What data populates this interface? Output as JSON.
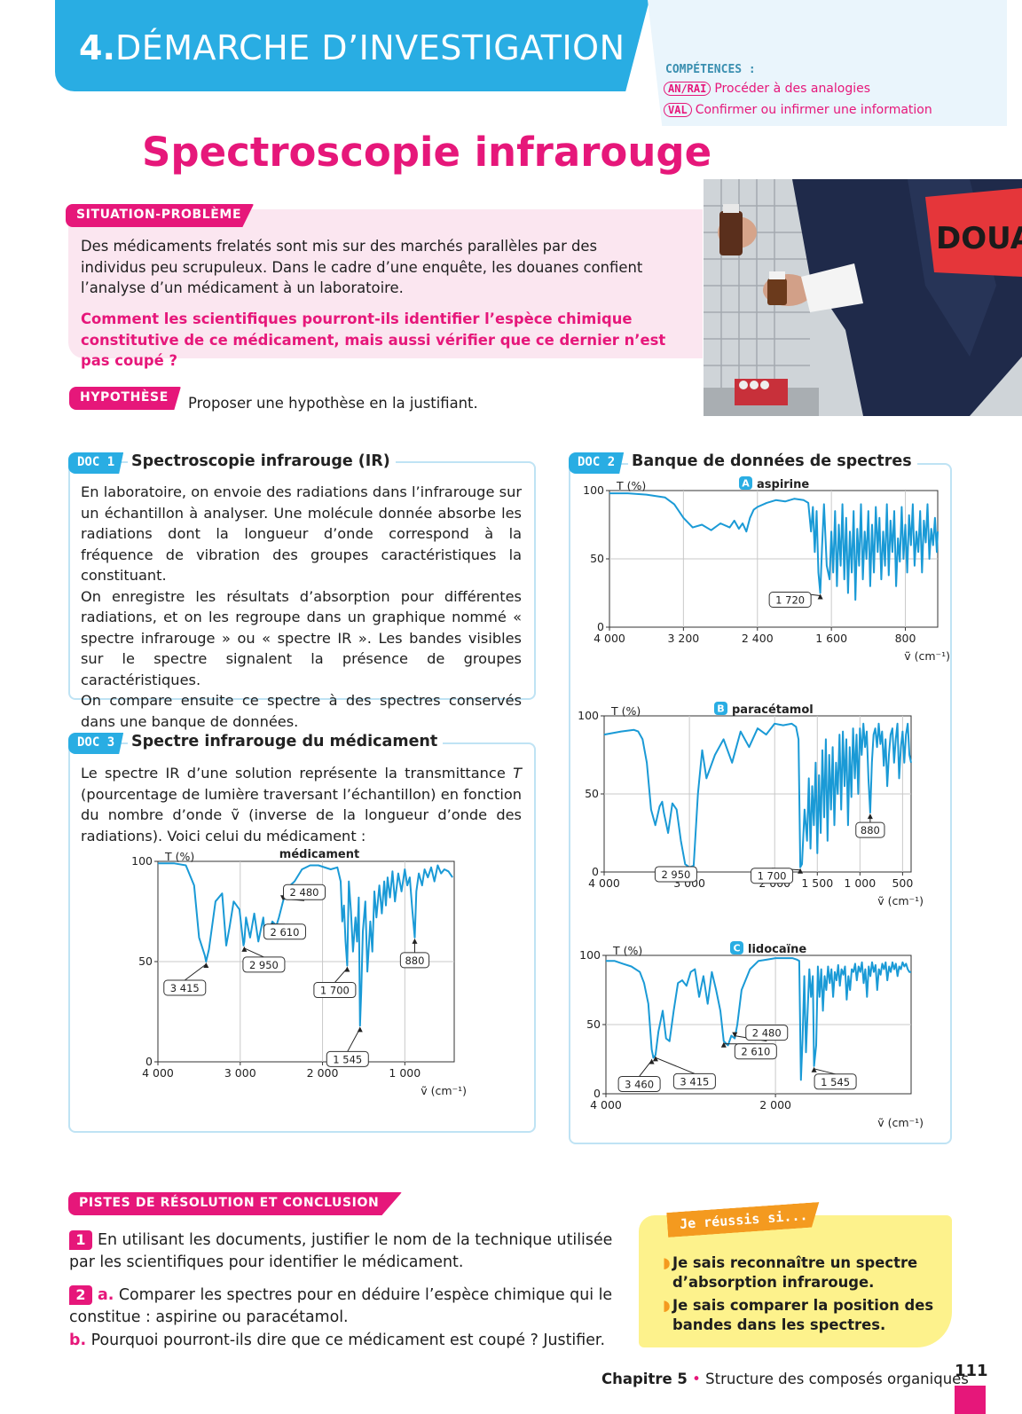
{
  "header": {
    "number": "4.",
    "title": "DÉMARCHE D’INVESTIGATION",
    "competences_title": "COMPÉTENCES :",
    "competences": [
      {
        "tag": "AN/RAI",
        "label": "Procéder à des analogies"
      },
      {
        "tag": "VAL",
        "label": "Confirmer ou infirmer une information"
      }
    ]
  },
  "page_title": "Spectroscopie infrarouge",
  "situation": {
    "label": "SITUATION-PROBLÈME",
    "text": "Des médicaments frelatés sont mis sur des marchés parallèles par des individus peu scrupuleux. Dans le cadre d’une enquête, les douanes confient l’analyse d’un médicament à un laboratoire.",
    "question": "Comment les scientifiques pourront-ils identifier l’espèce chimique constitutive de ce médicament, mais aussi vérifier que ce dernier n’est pas coupé ?"
  },
  "photo": {
    "armband_text": "DOUAN"
  },
  "hypothese": {
    "label": "HYPOTHÈSE",
    "text": "Proposer une hypothèse en la justifiant."
  },
  "doc1": {
    "tag": "DOC 1",
    "title": "Spectroscopie infrarouge (IR)",
    "paragraphs": [
      "En laboratoire, on envoie des radiations dans l’infrarouge sur un échantillon à analyser. Une molécule donnée absorbe les radiations dont la longueur d’onde correspond à la fréquence de vibration des groupes caractéristiques la constituant.",
      "On enregistre les résultats d’absorption pour différentes radiations, et on les regroupe dans un graphique nommé « spectre infrarouge » ou « spectre IR ». Les bandes visibles sur le spectre signalent la présence de groupes caractéristiques.",
      "On compare ensuite ce spectre à des spectres conservés dans une banque de données."
    ]
  },
  "doc2": {
    "tag": "DOC 2",
    "title": "Banque de données de spectres"
  },
  "doc3": {
    "tag": "DOC 3",
    "title": "Spectre infrarouge du médicament",
    "text_parts": [
      "Le spectre IR d’une solution représente la transmittance ",
      "T",
      " (pourcentage de lumière traversant l’échantillon) en fonction du nombre d’onde ṽ (inverse de la longueur d’onde des radiations). Voici celui du médicament :"
    ]
  },
  "chart_data": [
    {
      "id": "medicament",
      "type": "line",
      "title": "médicament",
      "ylabel": "T (%)",
      "xlabel": "ṽ (cm⁻¹)",
      "xlim": [
        4000,
        400
      ],
      "ylim": [
        0,
        100
      ],
      "x_ticks": [
        "4 000",
        "3 000",
        "2 000",
        "1 000"
      ],
      "x_tick_values": [
        4000,
        3000,
        2000,
        1000
      ],
      "y_ticks": [
        "0",
        "50",
        "100"
      ],
      "color": "#1a9ad6",
      "x": [
        4000,
        3800,
        3660,
        3560,
        3500,
        3430,
        3415,
        3380,
        3300,
        3220,
        3170,
        3130,
        3080,
        3010,
        2960,
        2950,
        2930,
        2880,
        2830,
        2780,
        2720,
        2700,
        2650,
        2610,
        2560,
        2530,
        2480,
        2420,
        2340,
        2250,
        2150,
        2050,
        1900,
        1820,
        1780,
        1760,
        1740,
        1720,
        1700,
        1680,
        1655,
        1630,
        1600,
        1580,
        1560,
        1545,
        1530,
        1510,
        1480,
        1455,
        1420,
        1395,
        1370,
        1345,
        1310,
        1280,
        1250,
        1230,
        1210,
        1180,
        1150,
        1120,
        1080,
        1040,
        1000,
        970,
        940,
        910,
        880,
        860,
        830,
        790,
        760,
        720,
        680,
        640,
        600,
        560,
        520,
        470,
        420
      ],
      "y": [
        99,
        99,
        98,
        88,
        62,
        53,
        50,
        56,
        80,
        84,
        58,
        67,
        80,
        76,
        58,
        60,
        72,
        62,
        74,
        60,
        72,
        62,
        65,
        70,
        68,
        72,
        80,
        87,
        90,
        96,
        98,
        98,
        96,
        97,
        90,
        70,
        78,
        60,
        48,
        90,
        75,
        55,
        72,
        60,
        82,
        18,
        35,
        65,
        80,
        45,
        70,
        55,
        85,
        72,
        88,
        74,
        90,
        78,
        92,
        82,
        95,
        80,
        94,
        85,
        96,
        88,
        92,
        76,
        62,
        85,
        94,
        88,
        96,
        92,
        97,
        90,
        98,
        94,
        96,
        95,
        92
      ],
      "annotations": [
        {
          "label": "3 415",
          "x": 3415,
          "y": 50
        },
        {
          "label": "2 950",
          "x": 2950,
          "y": 58
        },
        {
          "label": "2 610",
          "x": 2610,
          "y": 70
        },
        {
          "label": "2 480",
          "x": 2480,
          "y": 80
        },
        {
          "label": "1 700",
          "x": 1700,
          "y": 48
        },
        {
          "label": "1 545",
          "x": 1545,
          "y": 18
        },
        {
          "label": "880",
          "x": 880,
          "y": 62
        }
      ]
    },
    {
      "id": "aspirine",
      "badge": "A",
      "type": "line",
      "title": "aspirine",
      "ylabel": "T (%)",
      "xlabel": "ṽ (cm⁻¹)",
      "xlim": [
        4000,
        450
      ],
      "ylim": [
        0,
        100
      ],
      "x_ticks": [
        "4 000",
        "3 200",
        "2 400",
        "1 600",
        "800"
      ],
      "x_tick_values": [
        4000,
        3200,
        2400,
        1600,
        800
      ],
      "y_ticks": [
        "0",
        "50",
        "100"
      ],
      "color": "#1a9ad6",
      "x": [
        4000,
        3800,
        3600,
        3400,
        3300,
        3200,
        3100,
        3000,
        2900,
        2800,
        2700,
        2650,
        2600,
        2560,
        2520,
        2480,
        2440,
        2400,
        2300,
        2200,
        2100,
        2000,
        1900,
        1850,
        1820,
        1800,
        1780,
        1760,
        1740,
        1720,
        1700,
        1680,
        1650,
        1620,
        1600,
        1580,
        1560,
        1540,
        1520,
        1500,
        1480,
        1460,
        1440,
        1420,
        1400,
        1380,
        1360,
        1340,
        1320,
        1300,
        1280,
        1260,
        1240,
        1220,
        1200,
        1180,
        1160,
        1140,
        1120,
        1100,
        1080,
        1060,
        1040,
        1020,
        1000,
        980,
        960,
        940,
        920,
        900,
        880,
        860,
        840,
        820,
        800,
        780,
        760,
        740,
        720,
        700,
        680,
        660,
        640,
        620,
        600,
        580,
        560,
        540,
        520,
        500,
        480,
        460,
        450
      ],
      "y": [
        98,
        98,
        97,
        95,
        90,
        80,
        73,
        75,
        71,
        76,
        73,
        78,
        72,
        76,
        70,
        80,
        86,
        88,
        91,
        93,
        92,
        94,
        93,
        91,
        70,
        88,
        55,
        85,
        40,
        25,
        60,
        90,
        45,
        35,
        70,
        40,
        85,
        30,
        75,
        45,
        90,
        35,
        80,
        25,
        70,
        40,
        85,
        20,
        72,
        45,
        90,
        35,
        70,
        50,
        85,
        30,
        75,
        40,
        88,
        55,
        80,
        35,
        70,
        45,
        90,
        38,
        78,
        55,
        85,
        30,
        65,
        48,
        88,
        50,
        75,
        40,
        82,
        60,
        90,
        45,
        70,
        55,
        85,
        40,
        78,
        62,
        90,
        50,
        72,
        60,
        80,
        55,
        70
      ],
      "annotations": [
        {
          "label": "1 720",
          "x": 1720,
          "y": 25
        }
      ]
    },
    {
      "id": "paracetamol",
      "badge": "B",
      "type": "line",
      "title": "paracétamol",
      "ylabel": "T (%)",
      "xlabel": "ṽ (cm⁻¹)",
      "xlim": [
        4000,
        400
      ],
      "ylim": [
        0,
        100
      ],
      "x_ticks": [
        "4 000",
        "3 000",
        "2 000",
        "1 500",
        "1 000",
        "500"
      ],
      "x_tick_values": [
        4000,
        3000,
        2000,
        1500,
        1000,
        500
      ],
      "y_ticks": [
        "0",
        "50",
        "100"
      ],
      "color": "#1a9ad6",
      "x": [
        4000,
        3800,
        3650,
        3600,
        3550,
        3500,
        3450,
        3400,
        3350,
        3320,
        3300,
        3250,
        3200,
        3150,
        3100,
        3050,
        3000,
        2950,
        2900,
        2850,
        2800,
        2700,
        2600,
        2500,
        2400,
        2300,
        2200,
        2100,
        2000,
        1900,
        1800,
        1750,
        1720,
        1700,
        1680,
        1650,
        1620,
        1600,
        1580,
        1560,
        1540,
        1520,
        1500,
        1480,
        1460,
        1440,
        1420,
        1400,
        1380,
        1360,
        1340,
        1320,
        1300,
        1280,
        1260,
        1240,
        1220,
        1200,
        1180,
        1160,
        1140,
        1120,
        1100,
        1080,
        1060,
        1040,
        1020,
        1000,
        980,
        960,
        940,
        920,
        900,
        880,
        860,
        840,
        820,
        800,
        780,
        760,
        740,
        720,
        700,
        680,
        660,
        640,
        620,
        600,
        580,
        560,
        540,
        520,
        500,
        480,
        460,
        440,
        420,
        400
      ],
      "y": [
        88,
        90,
        91,
        90,
        85,
        70,
        40,
        30,
        42,
        45,
        38,
        25,
        44,
        40,
        20,
        5,
        3,
        4,
        50,
        78,
        60,
        75,
        85,
        70,
        90,
        80,
        92,
        88,
        95,
        94,
        95,
        93,
        85,
        3,
        5,
        40,
        20,
        60,
        15,
        55,
        30,
        70,
        12,
        62,
        25,
        78,
        35,
        85,
        20,
        75,
        40,
        80,
        30,
        70,
        50,
        88,
        40,
        90,
        55,
        85,
        30,
        80,
        48,
        92,
        60,
        88,
        50,
        92,
        75,
        95,
        80,
        90,
        60,
        38,
        70,
        88,
        92,
        80,
        95,
        82,
        90,
        68,
        85,
        55,
        75,
        88,
        92,
        70,
        85,
        95,
        60,
        80,
        90,
        70,
        88,
        95,
        75,
        70
      ],
      "annotations": [
        {
          "label": "2 950",
          "x": 2950,
          "y": 4
        },
        {
          "label": "1 700",
          "x": 1700,
          "y": 3
        },
        {
          "label": "880",
          "x": 880,
          "y": 38
        }
      ]
    },
    {
      "id": "lidocaine",
      "badge": "C",
      "type": "line",
      "title": "lidocaïne",
      "ylabel": "T (%)",
      "xlabel": "ṽ (cm⁻¹)",
      "xlim": [
        4000,
        400
      ],
      "ylim": [
        0,
        100
      ],
      "x_ticks": [
        "4 000",
        "2 000"
      ],
      "x_tick_values": [
        4000,
        2000
      ],
      "y_ticks": [
        "0",
        "50",
        "100"
      ],
      "color": "#1a9ad6",
      "x": [
        4000,
        3900,
        3800,
        3700,
        3600,
        3550,
        3500,
        3460,
        3440,
        3415,
        3380,
        3330,
        3290,
        3250,
        3200,
        3150,
        3100,
        3050,
        3000,
        2950,
        2900,
        2850,
        2800,
        2750,
        2700,
        2650,
        2610,
        2560,
        2520,
        2480,
        2450,
        2400,
        2300,
        2200,
        2100,
        2000,
        1900,
        1800,
        1750,
        1720,
        1700,
        1680,
        1660,
        1640,
        1620,
        1600,
        1580,
        1560,
        1545,
        1520,
        1500,
        1480,
        1460,
        1440,
        1420,
        1400,
        1380,
        1360,
        1340,
        1320,
        1300,
        1280,
        1260,
        1240,
        1220,
        1200,
        1180,
        1160,
        1140,
        1120,
        1100,
        1080,
        1060,
        1040,
        1020,
        1000,
        980,
        960,
        940,
        920,
        900,
        880,
        860,
        840,
        820,
        800,
        780,
        760,
        740,
        720,
        700,
        680,
        660,
        640,
        620,
        600,
        580,
        560,
        540,
        520,
        500,
        480,
        460,
        440,
        420,
        400
      ],
      "y": [
        96,
        96,
        94,
        92,
        88,
        80,
        65,
        32,
        26,
        28,
        45,
        60,
        40,
        38,
        60,
        80,
        82,
        78,
        88,
        90,
        70,
        85,
        65,
        88,
        75,
        60,
        38,
        35,
        42,
        40,
        50,
        75,
        90,
        96,
        97,
        98,
        98,
        98,
        97,
        96,
        10,
        40,
        85,
        30,
        60,
        90,
        70,
        85,
        20,
        35,
        92,
        70,
        90,
        60,
        85,
        75,
        92,
        80,
        90,
        70,
        88,
        82,
        93,
        78,
        90,
        86,
        92,
        68,
        85,
        75,
        90,
        88,
        94,
        82,
        92,
        88,
        95,
        80,
        90,
        70,
        92,
        85,
        95,
        88,
        93,
        75,
        90,
        86,
        94,
        90,
        95,
        82,
        92,
        88,
        95,
        90,
        94,
        85,
        92,
        90,
        95,
        92,
        94,
        90,
        88,
        88
      ],
      "annotations": [
        {
          "label": "3 460",
          "x": 3460,
          "y": 26
        },
        {
          "label": "3 415",
          "x": 3415,
          "y": 28
        },
        {
          "label": "2 610",
          "x": 2610,
          "y": 38
        },
        {
          "label": "2 480",
          "x": 2480,
          "y": 40
        },
        {
          "label": "1 545",
          "x": 1545,
          "y": 20
        }
      ]
    }
  ],
  "pistes": {
    "label": "PISTES DE RÉSOLUTION ET CONCLUSION",
    "q1_num": "1",
    "q1": "En utilisant les documents, justifier le nom de la technique utilisée par les scientifiques pour identifier le médicament.",
    "q2_num": "2",
    "q2a_label": "a.",
    "q2a": "Comparer les spectres pour en déduire l’espèce chimique qui le constitue : aspirine ou paracétamol.",
    "q2b_label": "b.",
    "q2b": "Pourquoi pourront-ils dire que ce médicament est coupé ? Justifier."
  },
  "reussis": {
    "title": "Je réussis si...",
    "items": [
      "Je sais reconnaître un spectre d’absorption infrarouge.",
      "Je sais comparer la position des bandes dans les spectres."
    ]
  },
  "footer": {
    "chapter": "Chapitre 5",
    "dot": "•",
    "subject": "Structure des composés organiques",
    "page": "111"
  }
}
